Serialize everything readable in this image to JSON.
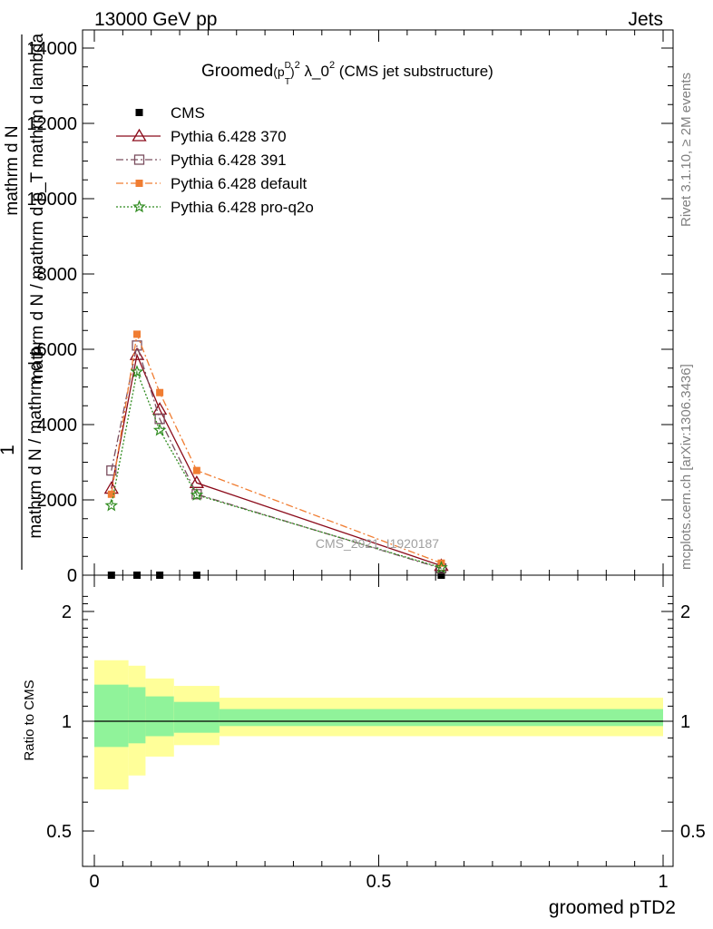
{
  "header": {
    "left": "13000 GeV pp",
    "right": "Jets"
  },
  "side_labels": {
    "rivet": "Rivet 3.1.10, ≥ 2M events",
    "mcplots": "mcplots.cern.ch [arXiv:1306.3436]"
  },
  "watermark": "CMS_2021_I1920187",
  "chart_data": [
    {
      "type": "line",
      "title": {
        "prefix": "Groomed",
        "math": "(p",
        "sup_d": "D",
        "sub_t": "T",
        "close": ")",
        "sup_2": "2",
        "lambda": " λ_0",
        "sup_2b": "2",
        "suffix": " (CMS jet substructure)"
      },
      "ylabel": {
        "numerator": "1",
        "frac1_num": "mathrm d N",
        "frac1_den": "mathrm d N / mathrm d p",
        "frac1_den_sub": "T",
        "frac1_den_tail": " mathrm d p",
        "frac1_den_sub2": "T",
        "frac1_den_end": "mathrm d lambda",
        "stacked": "mathrm d N / mathrm d p_T mathrm d lambda",
        "display": "1 / (mathrm d N / mathrm d p_T mathrm d p_T mathrm d lambda) · mathrm d²N / mathrm d p_T mathrm d lambda"
      },
      "xlim": [
        0,
        1
      ],
      "ylim": [
        0,
        14000
      ],
      "yticks": [
        0,
        2000,
        4000,
        6000,
        8000,
        10000,
        12000,
        14000
      ],
      "ytick_labels": [
        "0",
        "2000",
        "4000",
        "6000",
        "8000",
        "10000",
        "12000",
        "14000"
      ],
      "legend_placement": "top-left",
      "series": [
        {
          "name": "CMS",
          "color": "#000000",
          "marker": "filled-square",
          "x": [
            0.03,
            0.075,
            0.115,
            0.18,
            0.61
          ],
          "y": [
            0,
            0,
            0,
            0,
            0
          ]
        },
        {
          "name": "Pythia 6.428 370",
          "color": "#8b0a1a",
          "marker": "open-triangle",
          "line": "solid",
          "x": [
            0.03,
            0.075,
            0.115,
            0.18,
            0.61
          ],
          "y": [
            2300,
            5850,
            4400,
            2450,
            250
          ]
        },
        {
          "name": "Pythia 6.428 391",
          "color": "#7a4d5e",
          "marker": "open-square",
          "line": "dash-dot",
          "x": [
            0.03,
            0.075,
            0.115,
            0.18,
            0.61
          ],
          "y": [
            2780,
            6100,
            4150,
            2150,
            180
          ]
        },
        {
          "name": "Pythia 6.428 default",
          "color": "#f07d32",
          "marker": "filled-square",
          "line": "dash-dot",
          "x": [
            0.03,
            0.075,
            0.115,
            0.18,
            0.61
          ],
          "y": [
            2150,
            6400,
            4850,
            2780,
            320
          ]
        },
        {
          "name": "Pythia 6.428 pro-q2o",
          "color": "#2e8b1e",
          "marker": "star",
          "line": "dotted",
          "x": [
            0.03,
            0.075,
            0.115,
            0.18,
            0.61
          ],
          "y": [
            1850,
            5400,
            3850,
            2130,
            200
          ]
        }
      ]
    },
    {
      "type": "area",
      "ylabel": "Ratio to CMS",
      "xlabel": "groomed pTD2",
      "xlim": [
        0,
        1
      ],
      "ylim": [
        0.35,
        2.3
      ],
      "yticks": [
        0.5,
        1,
        2
      ],
      "ytick_labels": [
        "0.5",
        "1",
        "2"
      ],
      "xticks": [
        0,
        0.5,
        1
      ],
      "xtick_labels": [
        "0",
        "0.5",
        "1"
      ],
      "bins": [
        {
          "x0": 0.0,
          "x1": 0.06,
          "inner": [
            0.85,
            1.26
          ],
          "outer": [
            0.65,
            1.47
          ]
        },
        {
          "x0": 0.06,
          "x1": 0.09,
          "inner": [
            0.87,
            1.24
          ],
          "outer": [
            0.71,
            1.42
          ]
        },
        {
          "x0": 0.09,
          "x1": 0.14,
          "inner": [
            0.91,
            1.17
          ],
          "outer": [
            0.8,
            1.31
          ]
        },
        {
          "x0": 0.14,
          "x1": 0.22,
          "inner": [
            0.93,
            1.13
          ],
          "outer": [
            0.86,
            1.25
          ]
        },
        {
          "x0": 0.22,
          "x1": 1.0,
          "inner": [
            0.97,
            1.08
          ],
          "outer": [
            0.91,
            1.16
          ]
        }
      ],
      "colors": {
        "inner": "#90f39a",
        "outer": "#ffff99"
      },
      "reference": 1
    }
  ]
}
